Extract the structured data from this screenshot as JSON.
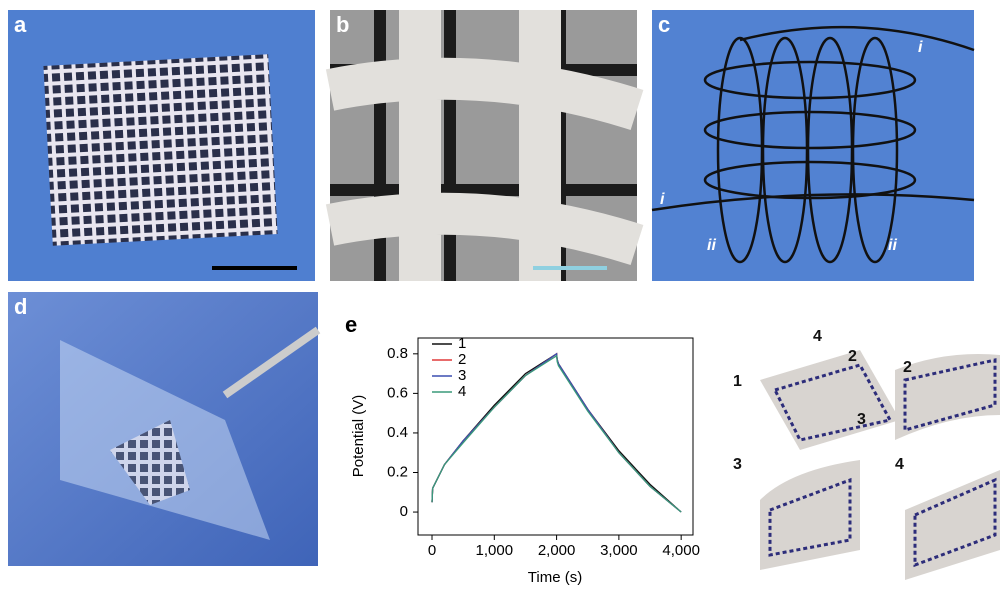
{
  "panels": [
    {
      "label": "a"
    },
    {
      "label": "b"
    },
    {
      "label": "c"
    },
    {
      "label": "d"
    }
  ],
  "panel_c_annotations": [
    "i",
    "i",
    "ii",
    "ii"
  ],
  "schematic": {
    "labels": [
      "4",
      "2",
      "1",
      "3",
      "2",
      "3",
      "4"
    ]
  },
  "chart_data": {
    "type": "line",
    "panel_label": "e",
    "x_label": "Time (s)",
    "y_label": "Potential (V)",
    "x": [
      0,
      10,
      200,
      500,
      1000,
      1500,
      2000,
      2010,
      2030,
      2500,
      3000,
      3500,
      4000
    ],
    "series": [
      {
        "name": "1",
        "color": "#111111",
        "values": [
          0.05,
          0.12,
          0.24,
          0.36,
          0.54,
          0.7,
          0.8,
          0.77,
          0.75,
          0.52,
          0.31,
          0.14,
          0.0
        ]
      },
      {
        "name": "2",
        "color": "#e03a3a",
        "values": [
          0.05,
          0.12,
          0.24,
          0.36,
          0.53,
          0.69,
          0.8,
          0.77,
          0.75,
          0.52,
          0.3,
          0.13,
          0.0
        ]
      },
      {
        "name": "3",
        "color": "#3b4fb0",
        "values": [
          0.05,
          0.12,
          0.24,
          0.36,
          0.53,
          0.69,
          0.8,
          0.77,
          0.75,
          0.52,
          0.3,
          0.13,
          0.0
        ]
      },
      {
        "name": "4",
        "color": "#3a9a7a",
        "values": [
          0.05,
          0.12,
          0.24,
          0.35,
          0.53,
          0.69,
          0.79,
          0.76,
          0.74,
          0.51,
          0.3,
          0.13,
          0.0
        ]
      }
    ],
    "xlim": [
      -225,
      4190
    ],
    "ylim": [
      -0.116,
      0.88
    ],
    "xticks": [
      0,
      {
        "value": 1000,
        "label": "1,000"
      },
      {
        "value": 2000,
        "label": "2,000"
      },
      {
        "value": 3000,
        "label": "3,000"
      },
      {
        "value": 4000,
        "label": "4,000"
      }
    ],
    "yticks": [
      0,
      0.2,
      0.4,
      0.6,
      0.8
    ],
    "legend": "upper left"
  }
}
